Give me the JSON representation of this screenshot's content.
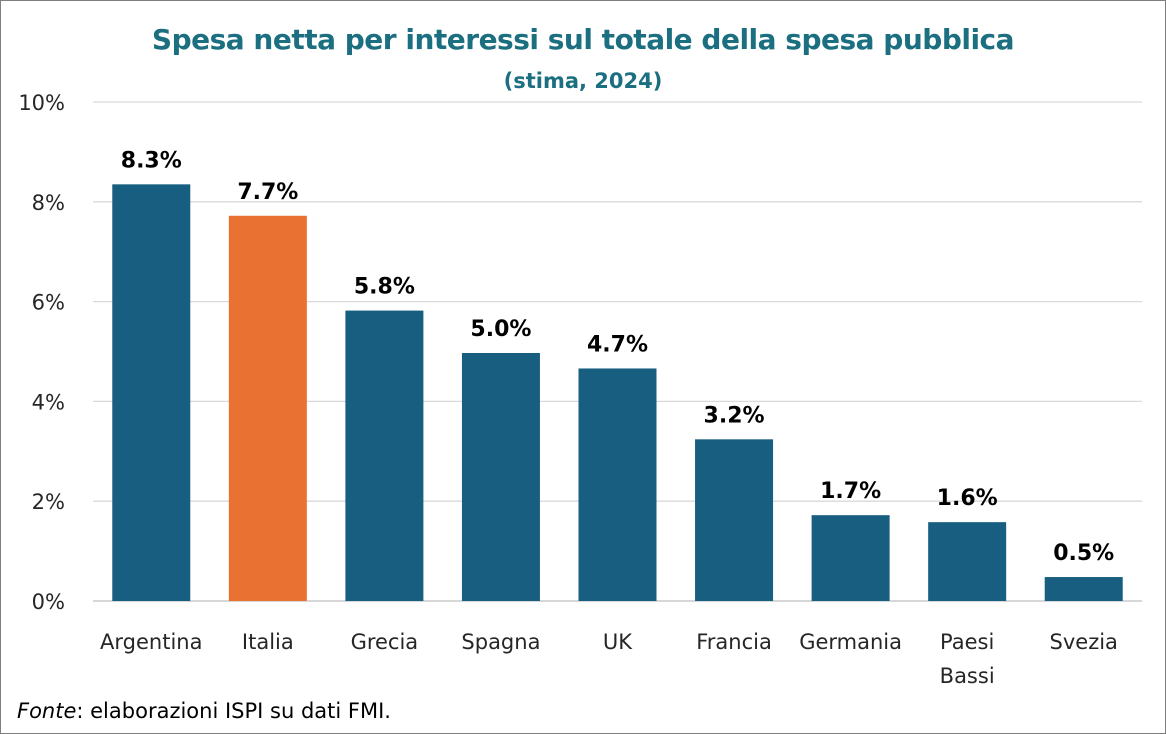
{
  "chart_data": {
    "type": "bar",
    "title": "Spesa netta per interessi sul totale della spesa pubblica",
    "subtitle": "(stima, 2024)",
    "categories": [
      "Argentina",
      "Italia",
      "Grecia",
      "Spagna",
      "UK",
      "Francia",
      "Germania",
      "Paesi Bassi",
      "Svezia"
    ],
    "category_lines": [
      [
        "Argentina"
      ],
      [
        "Italia"
      ],
      [
        "Grecia"
      ],
      [
        "Spagna"
      ],
      [
        "UK"
      ],
      [
        "Francia"
      ],
      [
        "Germania"
      ],
      [
        "Paesi",
        "Bassi"
      ],
      [
        "Svezia"
      ]
    ],
    "values": [
      8.35,
      7.72,
      5.82,
      4.97,
      4.66,
      3.24,
      1.72,
      1.58,
      0.48
    ],
    "data_labels": [
      "8.3%",
      "7.7%",
      "5.8%",
      "5.0%",
      "4.7%",
      "3.2%",
      "1.7%",
      "1.6%",
      "0.5%"
    ],
    "highlight_index": 1,
    "ylim": [
      0,
      10
    ],
    "yticks": [
      0,
      2,
      4,
      6,
      8,
      10
    ],
    "ytick_labels": [
      "0%",
      "2%",
      "4%",
      "6%",
      "8%",
      "10%"
    ],
    "xlabel": "",
    "ylabel": "",
    "grid": true,
    "colors": {
      "bar": "#175e80",
      "highlight": "#e97132",
      "grid": "#d9d9d9",
      "axis": "#bfbfbf",
      "title": "#1b6f80",
      "text": "#000000",
      "tick_text": "#262626"
    }
  },
  "source": {
    "label": "Fonte",
    "text": ": elaborazioni ISPI su dati FMI."
  }
}
